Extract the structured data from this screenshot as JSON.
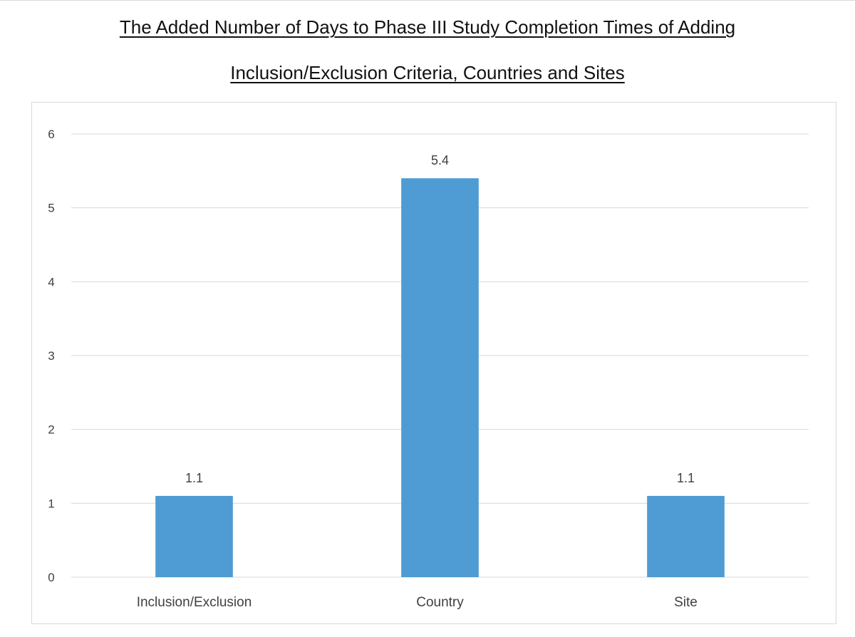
{
  "chart_data": {
    "type": "bar",
    "title_lines": [
      "The Added Number of Days to Phase III Study Completion Times of Adding",
      "Inclusion/Exclusion Criteria, Countries and Sites"
    ],
    "categories": [
      "Inclusion/Exclusion",
      "Country",
      "Site"
    ],
    "values": [
      1.1,
      5.4,
      1.1
    ],
    "data_labels": [
      "1.1",
      "5.4",
      "1.1"
    ],
    "xlabel": "",
    "ylabel": "",
    "ylim": [
      0,
      6
    ],
    "yticks": [
      0,
      1,
      2,
      3,
      4,
      5,
      6
    ],
    "grid": true,
    "legend": "none",
    "bar_color": "#4f9bd4",
    "grid_color": "#d9d9d9"
  }
}
